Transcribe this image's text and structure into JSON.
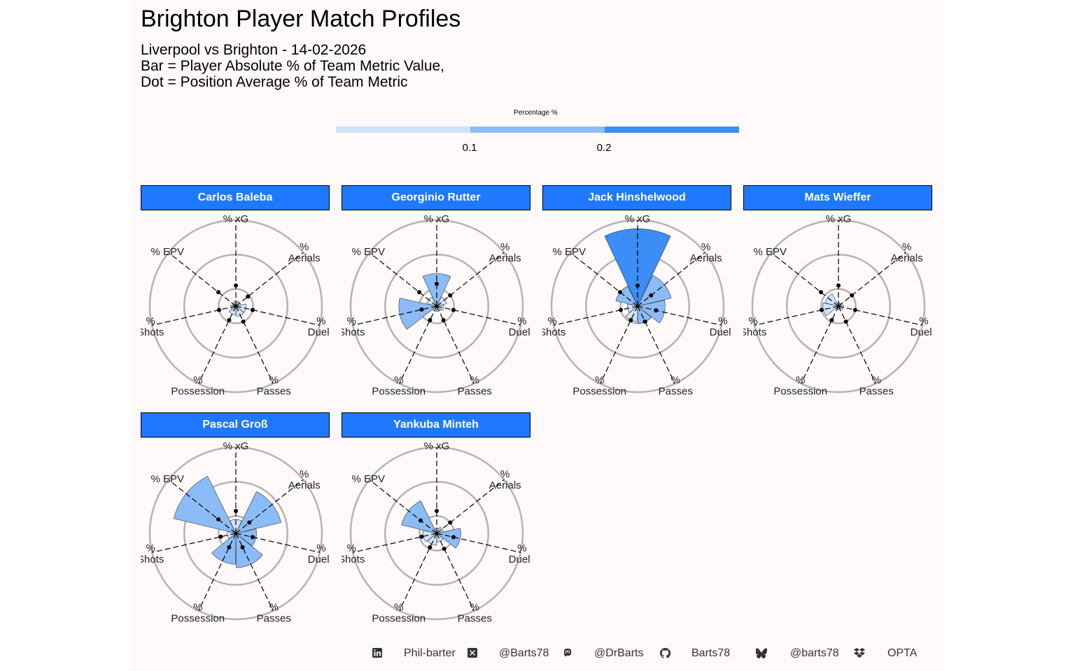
{
  "title": "Brighton Player Match Profiles",
  "subtitle": [
    "Liverpool vs Brighton - 14-02-2026",
    "Bar = Player Absolute % of Team Metric Value,",
    "Dot = Position Average % of Team Metric"
  ],
  "legend": {
    "title": "Percentage %",
    "ticks": [
      "0.1",
      "0.2"
    ],
    "colors": [
      "#cfe2f8",
      "#8cbcf7",
      "#3d8df7"
    ]
  },
  "colors": {
    "strip": "#1f78ff",
    "background": "#fff9f9",
    "grid": "#b3b3b3"
  },
  "footer": {
    "items": [
      {
        "icon": "linkedin-icon",
        "text": "Phil-barter"
      },
      {
        "icon": "x-twitter-icon",
        "text": "@Barts78"
      },
      {
        "icon": "mastodon-icon",
        "text": "@DrBarts"
      },
      {
        "icon": "github-icon",
        "text": "Barts78"
      },
      {
        "icon": "bluesky-icon",
        "text": "@barts78"
      },
      {
        "icon": "dropbox-icon",
        "text": "OPTA"
      }
    ]
  },
  "chart_data": {
    "type": "polar-bar",
    "metrics": [
      "% xG",
      "% Aerials",
      "% Duels",
      "% Passes",
      "% Possession",
      "% Shots",
      "% EPV"
    ],
    "rlim": [
      0,
      0.5
    ],
    "grid_circles": [
      0.1,
      0.3,
      0.5
    ],
    "players": [
      {
        "name": "Carlos Baleba",
        "values": [
          0.03,
          0.03,
          0.06,
          0.06,
          0.05,
          0.03,
          0.02
        ],
        "avg": [
          0.12,
          0.09,
          0.1,
          0.1,
          0.09,
          0.1,
          0.13
        ]
      },
      {
        "name": "Georginio Rutter",
        "values": [
          0.19,
          0.06,
          0.04,
          0.03,
          0.03,
          0.22,
          0.06
        ],
        "avg": [
          0.13,
          0.1,
          0.1,
          0.09,
          0.09,
          0.09,
          0.13
        ]
      },
      {
        "name": "Jack Hinshelwood",
        "values": [
          0.45,
          0.2,
          0.16,
          0.1,
          0.09,
          0.06,
          0.13
        ],
        "avg": [
          0.12,
          0.1,
          0.11,
          0.1,
          0.09,
          0.1,
          0.13
        ]
      },
      {
        "name": "Mats Wieffer",
        "values": [
          0.02,
          0.02,
          0.03,
          0.02,
          0.02,
          0.09,
          0.08
        ],
        "avg": [
          0.12,
          0.1,
          0.1,
          0.1,
          0.09,
          0.1,
          0.13
        ]
      },
      {
        "name": "Pascal Groß",
        "values": [
          0.08,
          0.27,
          0.12,
          0.2,
          0.18,
          0.05,
          0.37
        ],
        "avg": [
          0.13,
          0.1,
          0.1,
          0.09,
          0.09,
          0.09,
          0.13
        ]
      },
      {
        "name": "Yankuba Minteh",
        "values": [
          0.03,
          0.04,
          0.14,
          0.05,
          0.07,
          0.08,
          0.21
        ],
        "avg": [
          0.13,
          0.1,
          0.1,
          0.1,
          0.09,
          0.09,
          0.12
        ]
      }
    ]
  }
}
